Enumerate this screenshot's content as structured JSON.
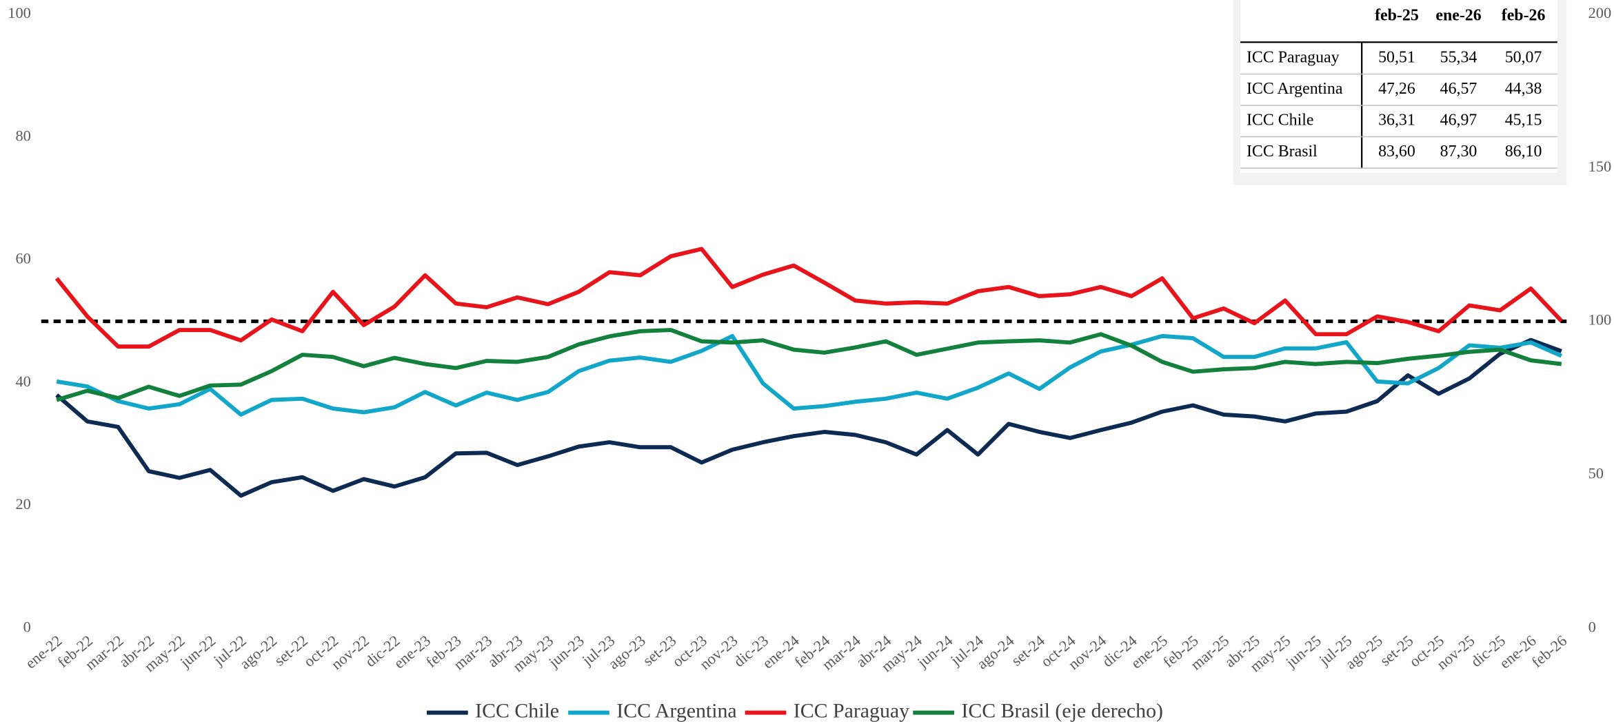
{
  "chart_data": {
    "type": "line",
    "categories": [
      "ene-22",
      "feb-22",
      "mar-22",
      "abr-22",
      "may-22",
      "jun-22",
      "jul-22",
      "ago-22",
      "set-22",
      "oct-22",
      "nov-22",
      "dic-22",
      "ene-23",
      "feb-23",
      "mar-23",
      "abr-23",
      "may-23",
      "jun-23",
      "jul-23",
      "ago-23",
      "set-23",
      "oct-23",
      "nov-23",
      "dic-23",
      "ene-24",
      "feb-24",
      "mar-24",
      "abr-24",
      "may-24",
      "jun-24",
      "jul-24",
      "ago-24",
      "set-24",
      "oct-24",
      "nov-24",
      "dic-24",
      "ene-25",
      "feb-25",
      "mar-25",
      "abr-25",
      "may-25",
      "jun-25",
      "jul-25",
      "ago-25",
      "set-25",
      "oct-25",
      "nov-25",
      "dic-25",
      "ene-26",
      "feb-26"
    ],
    "series": [
      {
        "name": "ICC Chile",
        "color": "#0d2a52",
        "values": [
          38.0,
          33.7,
          32.8,
          25.6,
          24.5,
          25.8,
          21.6,
          23.8,
          24.6,
          22.4,
          24.3,
          23.1,
          24.6,
          28.5,
          28.6,
          26.6,
          28.0,
          29.6,
          30.3,
          29.5,
          29.5,
          27.0,
          29.1,
          30.3,
          31.3,
          32.0,
          31.5,
          30.3,
          28.3,
          32.3,
          28.3,
          33.3,
          32.0,
          31.0,
          32.3,
          33.5,
          35.3,
          36.31,
          34.8,
          34.5,
          33.7,
          35.0,
          35.3,
          37.0,
          41.2,
          38.2,
          40.7,
          44.7,
          46.97,
          45.15
        ]
      },
      {
        "name": "ICC Argentina",
        "color": "#12a7c9",
        "values": [
          40.2,
          39.4,
          37.0,
          35.8,
          36.5,
          39.0,
          34.8,
          37.2,
          37.4,
          35.8,
          35.2,
          36.0,
          38.5,
          36.3,
          38.4,
          37.2,
          38.5,
          41.9,
          43.6,
          44.1,
          43.4,
          45.2,
          47.6,
          39.9,
          35.8,
          36.2,
          36.9,
          37.4,
          38.4,
          37.4,
          39.2,
          41.5,
          39.0,
          42.5,
          45.1,
          46.2,
          47.6,
          47.26,
          44.2,
          44.2,
          45.6,
          45.6,
          46.6,
          40.2,
          39.9,
          42.4,
          46.1,
          45.7,
          46.57,
          44.38
        ]
      },
      {
        "name": "ICC Paraguay",
        "color": "#e8141b",
        "values": [
          57.0,
          50.8,
          45.9,
          45.9,
          48.6,
          48.6,
          46.9,
          50.3,
          48.4,
          54.8,
          49.4,
          52.4,
          57.5,
          52.9,
          52.3,
          53.9,
          52.8,
          54.8,
          58.0,
          57.5,
          60.6,
          61.8,
          55.6,
          57.6,
          59.1,
          56.3,
          53.4,
          52.9,
          53.1,
          52.9,
          54.9,
          55.6,
          54.1,
          54.4,
          55.6,
          54.1,
          57.0,
          50.51,
          52.1,
          49.7,
          53.4,
          47.9,
          47.9,
          50.8,
          49.9,
          48.4,
          52.6,
          51.8,
          55.34,
          50.07
        ]
      },
      {
        "name": "ICC Brasil (eje derecho)",
        "color": "#13813d",
        "axis": "y2",
        "values": [
          74.4,
          77.4,
          75.0,
          78.7,
          75.7,
          79.1,
          79.4,
          83.8,
          89.1,
          88.4,
          85.4,
          88.1,
          86.1,
          84.8,
          87.1,
          86.8,
          88.4,
          92.5,
          95.1,
          96.8,
          97.2,
          93.5,
          93.1,
          93.8,
          90.8,
          89.8,
          91.5,
          93.5,
          89.1,
          91.1,
          93.1,
          93.5,
          93.8,
          93.1,
          95.8,
          92.1,
          86.8,
          83.6,
          84.4,
          84.8,
          86.8,
          86.1,
          86.8,
          86.4,
          87.8,
          88.8,
          90.1,
          90.8,
          87.3,
          86.1
        ]
      }
    ],
    "reference_line": 50,
    "ylim": [
      0,
      100
    ],
    "yticks": [
      0,
      20,
      40,
      60,
      80,
      100
    ],
    "y2lim": [
      0,
      200
    ],
    "y2ticks": [
      0,
      50,
      100,
      150,
      200
    ],
    "grid": false,
    "legend": "bottom"
  },
  "table": {
    "columns": [
      "feb-25",
      "ene-26",
      "feb-26"
    ],
    "rows": [
      {
        "label": "ICC Paraguay",
        "cells": [
          "50,51",
          "55,34",
          "50,07"
        ]
      },
      {
        "label": "ICC Argentina",
        "cells": [
          "47,26",
          "46,57",
          "44,38"
        ]
      },
      {
        "label": "ICC Chile",
        "cells": [
          "36,31",
          "46,97",
          "45,15"
        ]
      },
      {
        "label": "ICC Brasil",
        "cells": [
          "83,60",
          "87,30",
          "86,10"
        ]
      }
    ]
  }
}
